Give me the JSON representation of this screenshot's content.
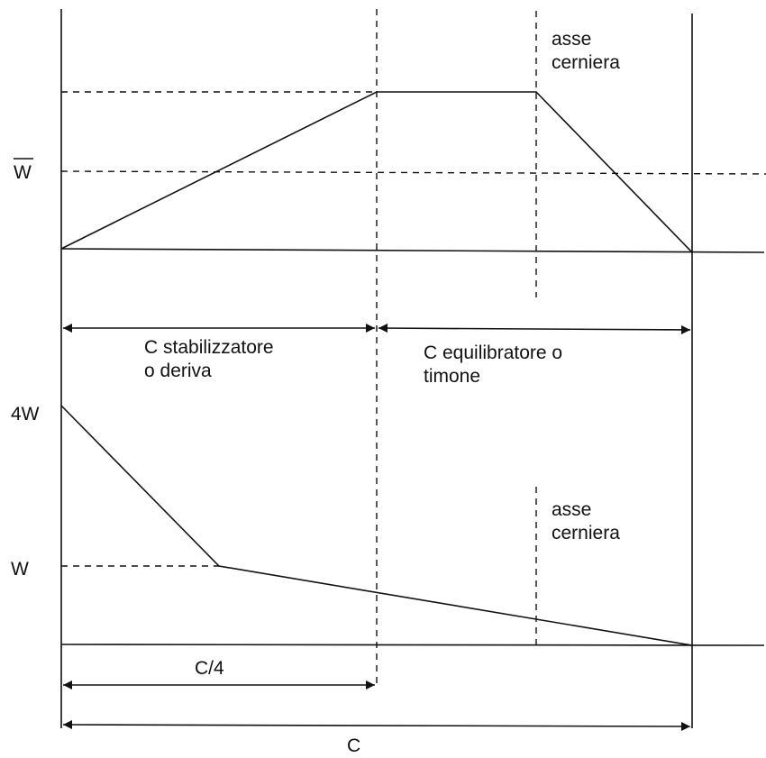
{
  "top_diagram": {
    "y_label": "W",
    "hinge_label_line1": "asse",
    "hinge_label_line2": "cerniera",
    "span1_line1": "C stabilizzatore",
    "span1_line2": "o deriva",
    "span2_line1": "C equilibratore o",
    "span2_line2": "timone"
  },
  "bottom_diagram": {
    "y_label_top": "4W",
    "y_label_mid": "W",
    "hinge_label_line1": "asse",
    "hinge_label_line2": "cerniera",
    "quarter_label": "C/4",
    "chord_label": "C"
  }
}
